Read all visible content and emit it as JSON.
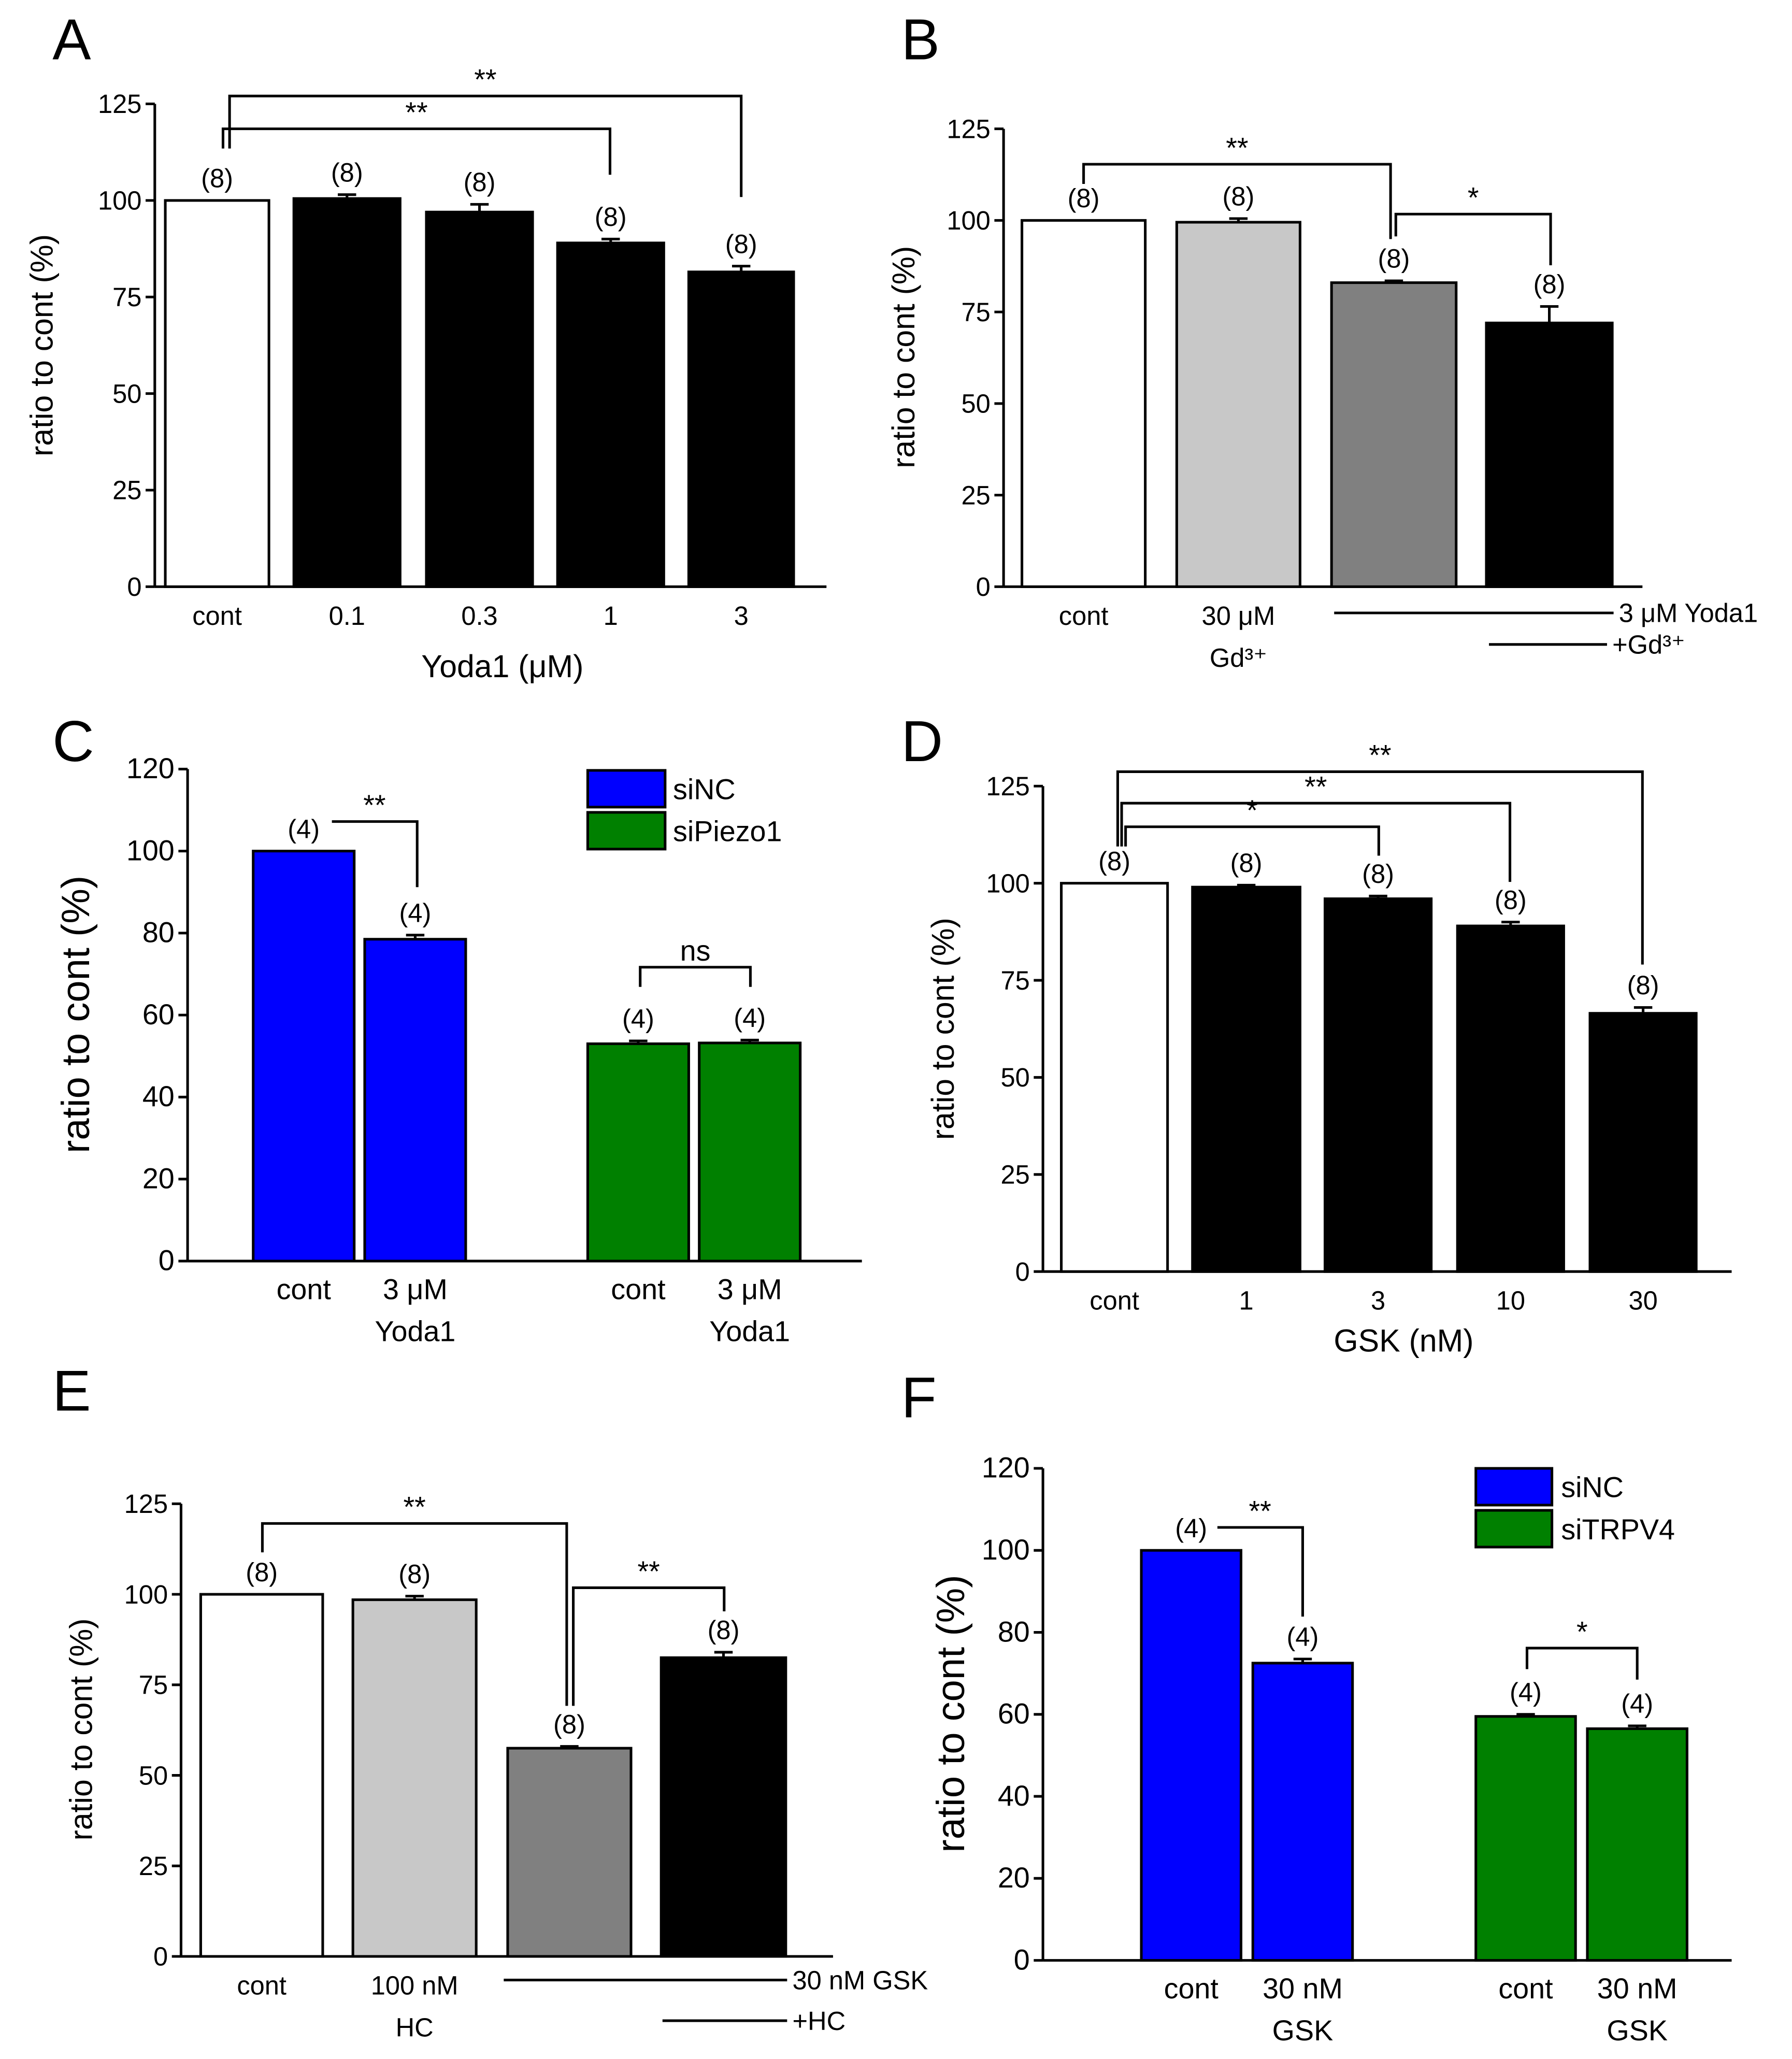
{
  "chart_data": [
    {
      "panel": "A",
      "type": "bar",
      "ylabel": "ratio to cont (%)",
      "xlabel": "Yoda1 (μM)",
      "ylim": [
        0,
        125
      ],
      "yticks": [
        0,
        25,
        50,
        75,
        100,
        125
      ],
      "categories": [
        [
          "cont"
        ],
        [
          "0.1"
        ],
        [
          "0.3"
        ],
        [
          "1"
        ],
        [
          "3"
        ]
      ],
      "values": [
        100,
        100.5,
        97,
        89,
        81.5
      ],
      "errors": [
        0,
        1,
        2,
        1,
        1.5
      ],
      "colors": [
        "#ffffff",
        "#000000",
        "#000000",
        "#000000",
        "#000000"
      ],
      "n_labels": [
        "(8)",
        "(8)",
        "(8)",
        "(8)",
        "(8)"
      ],
      "significance": [
        {
          "from": "cont",
          "to": "1",
          "label": "**"
        },
        {
          "from": "cont",
          "to": "3",
          "label": "**"
        }
      ],
      "treatment_lines": [],
      "legend": []
    },
    {
      "panel": "B",
      "type": "bar",
      "ylabel": "ratio to cont (%)",
      "xlabel": "",
      "ylim": [
        0,
        125
      ],
      "yticks": [
        0,
        25,
        50,
        75,
        100,
        125
      ],
      "categories": [
        [
          "cont"
        ],
        [
          "30 μM",
          "Gd³⁺"
        ],
        [
          ""
        ],
        [
          ""
        ]
      ],
      "values": [
        100,
        99.5,
        83,
        72
      ],
      "errors": [
        0,
        1,
        0.5,
        4.5
      ],
      "colors": [
        "#ffffff",
        "#c8c8c8",
        "#808080",
        "#000000"
      ],
      "n_labels": [
        "(8)",
        "(8)",
        "(8)",
        "(8)"
      ],
      "significance": [
        {
          "from": "cont",
          "to": "3 μM Yoda1",
          "label": "**"
        },
        {
          "from": "3 μM Yoda1",
          "to": "3 μM Yoda1 +Gd³⁺",
          "label": "*"
        }
      ],
      "treatment_lines": [
        "3 μM Yoda1",
        "+Gd³⁺"
      ],
      "legend": []
    },
    {
      "panel": "C",
      "type": "bar",
      "ylabel": "ratio to cont (%)",
      "xlabel": "",
      "ylim": [
        0,
        120
      ],
      "yticks": [
        0,
        20,
        40,
        60,
        80,
        100,
        120
      ],
      "categories": [
        [
          "cont"
        ],
        [
          "3 μM",
          "Yoda1"
        ],
        [
          "cont"
        ],
        [
          "3 μM",
          "Yoda1"
        ]
      ],
      "values": [
        100,
        78.5,
        53,
        53.2
      ],
      "errors": [
        0,
        1,
        0.7,
        0.7
      ],
      "colors": [
        "#0000ff",
        "#0000ff",
        "#008000",
        "#008000"
      ],
      "n_labels": [
        "(4)",
        "(4)",
        "(4)",
        "(4)"
      ],
      "significance": [
        {
          "from": "siNC cont",
          "to": "siNC 3 μM Yoda1",
          "label": "**"
        },
        {
          "from": "siPiezo1 cont",
          "to": "siPiezo1 3 μM Yoda1",
          "label": "ns"
        }
      ],
      "treatment_lines": [],
      "legend": [
        {
          "label": "siNC",
          "color": "#0000ff"
        },
        {
          "label": "siPiezo1",
          "color": "#008000"
        }
      ]
    },
    {
      "panel": "D",
      "type": "bar",
      "ylabel": "ratio to cont (%)",
      "xlabel": "GSK (nM)",
      "ylim": [
        0,
        125
      ],
      "yticks": [
        0,
        25,
        50,
        75,
        100,
        125
      ],
      "categories": [
        [
          "cont"
        ],
        [
          "1"
        ],
        [
          "3"
        ],
        [
          "10"
        ],
        [
          "30"
        ]
      ],
      "values": [
        100,
        99,
        96,
        89,
        66.5
      ],
      "errors": [
        0,
        0.5,
        0.7,
        1,
        1.5
      ],
      "colors": [
        "#ffffff",
        "#000000",
        "#000000",
        "#000000",
        "#000000"
      ],
      "n_labels": [
        "(8)",
        "(8)",
        "(8)",
        "(8)",
        "(8)"
      ],
      "significance": [
        {
          "from": "cont",
          "to": "3",
          "label": "*"
        },
        {
          "from": "cont",
          "to": "10",
          "label": "**"
        },
        {
          "from": "cont",
          "to": "30",
          "label": "**"
        }
      ],
      "treatment_lines": [],
      "legend": []
    },
    {
      "panel": "E",
      "type": "bar",
      "ylabel": "ratio to cont (%)",
      "xlabel": "",
      "ylim": [
        0,
        125
      ],
      "yticks": [
        0,
        25,
        50,
        75,
        100,
        125
      ],
      "categories": [
        [
          "cont"
        ],
        [
          "100 nM",
          "HC"
        ],
        [
          ""
        ],
        [
          ""
        ]
      ],
      "values": [
        100,
        98.5,
        57.5,
        82.5
      ],
      "errors": [
        0,
        1,
        0.5,
        1.5
      ],
      "colors": [
        "#ffffff",
        "#c8c8c8",
        "#808080",
        "#000000"
      ],
      "n_labels": [
        "(8)",
        "(8)",
        "(8)",
        "(8)"
      ],
      "significance": [
        {
          "from": "cont",
          "to": "30 nM GSK",
          "label": "**"
        },
        {
          "from": "30 nM GSK",
          "to": "30 nM GSK +HC",
          "label": "**"
        }
      ],
      "treatment_lines": [
        "30 nM GSK",
        "+HC"
      ],
      "legend": []
    },
    {
      "panel": "F",
      "type": "bar",
      "ylabel": "ratio to cont (%)",
      "xlabel": "",
      "ylim": [
        0,
        120
      ],
      "yticks": [
        0,
        20,
        40,
        60,
        80,
        100,
        120
      ],
      "categories": [
        [
          "cont"
        ],
        [
          "30 nM",
          "GSK"
        ],
        [
          "cont"
        ],
        [
          "30 nM",
          "GSK"
        ]
      ],
      "values": [
        100,
        72.5,
        59.5,
        56.5
      ],
      "errors": [
        0,
        1,
        0.5,
        0.7
      ],
      "colors": [
        "#0000ff",
        "#0000ff",
        "#008000",
        "#008000"
      ],
      "n_labels": [
        "(4)",
        "(4)",
        "(4)",
        "(4)"
      ],
      "significance": [
        {
          "from": "siNC cont",
          "to": "siNC 30 nM GSK",
          "label": "**"
        },
        {
          "from": "siTRPV4 cont",
          "to": "siTRPV4 30 nM GSK",
          "label": "*"
        }
      ],
      "treatment_lines": [],
      "legend": [
        {
          "label": "siNC",
          "color": "#0000ff"
        },
        {
          "label": "siTRPV4",
          "color": "#008000"
        }
      ]
    }
  ]
}
